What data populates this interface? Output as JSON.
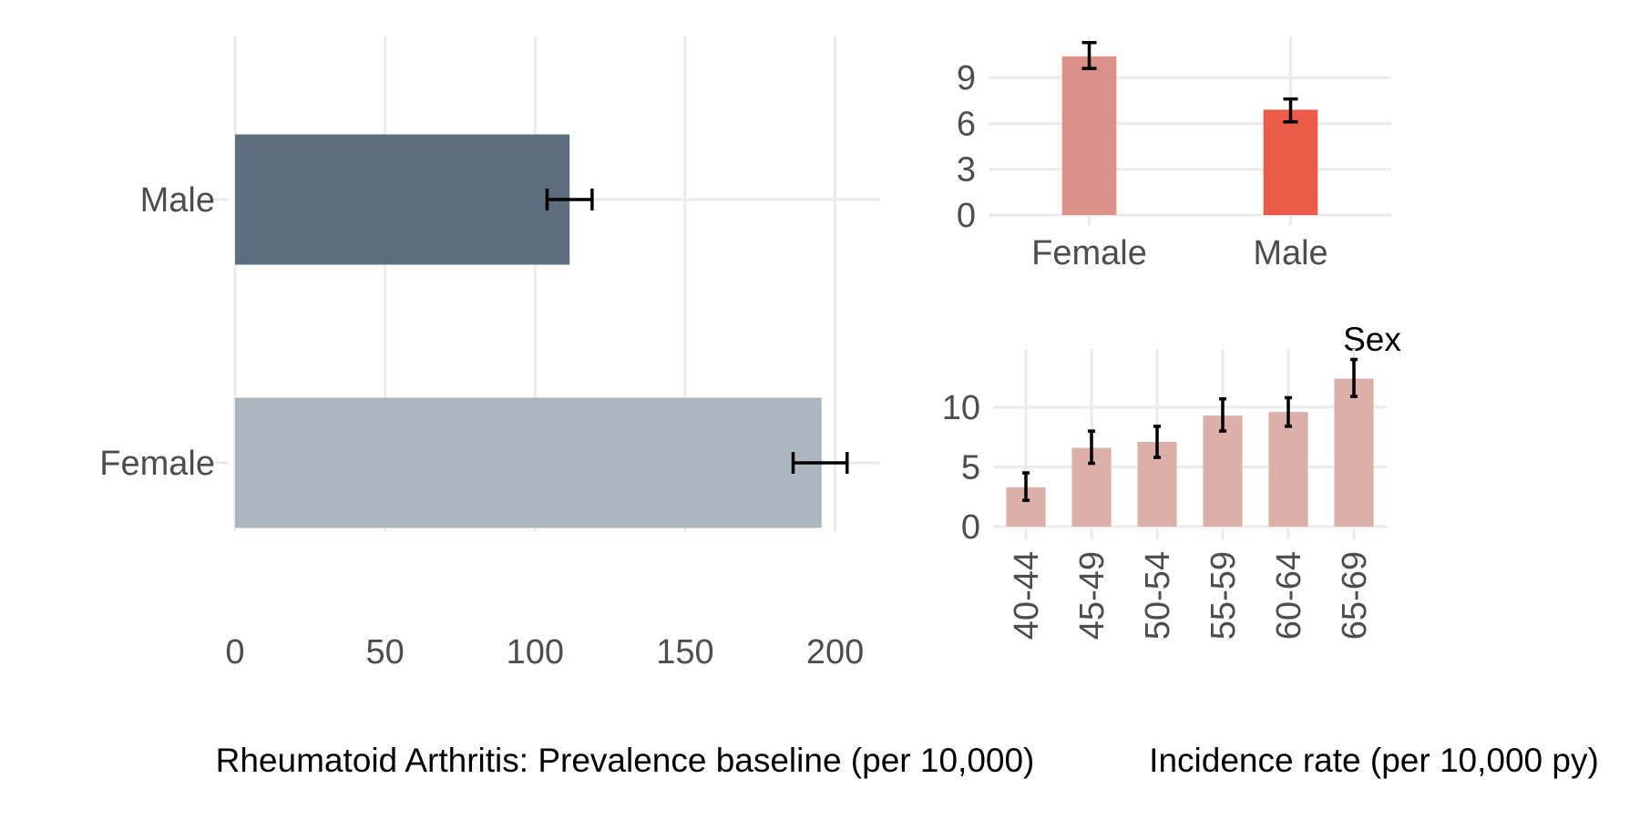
{
  "chart_data": [
    {
      "id": "prevalence",
      "type": "bar",
      "orientation": "horizontal",
      "title": "",
      "xlabel": "Rheumatoid Arthritis: Prevalence baseline (per 10,000)",
      "ylabel": "",
      "categories": [
        "Male",
        "Female"
      ],
      "values": [
        111.5,
        195.5
      ],
      "ci_low": [
        104,
        186
      ],
      "ci_high": [
        119,
        204
      ],
      "colors": [
        "#5d6d7e",
        "#adb5be"
      ],
      "xlim": [
        0,
        215
      ],
      "xticks": [
        0,
        50,
        100,
        150,
        200
      ],
      "grid": true
    },
    {
      "id": "incidence_sex",
      "type": "bar",
      "orientation": "vertical",
      "title": "",
      "xlabel": "Sex",
      "ylabel": "",
      "categories": [
        "Female",
        "Male"
      ],
      "values": [
        10.4,
        6.9
      ],
      "ci_low": [
        9.6,
        6.1
      ],
      "ci_high": [
        11.3,
        7.6
      ],
      "colors": [
        "#dc9188",
        "#ec5a4a"
      ],
      "ylim": [
        0,
        11.7
      ],
      "yticks": [
        0,
        3,
        6,
        9
      ],
      "grid": true
    },
    {
      "id": "incidence_age",
      "type": "bar",
      "orientation": "vertical",
      "title": "",
      "xlabel": "Incidence rate (per 10,000 py)",
      "ylabel": "",
      "categories": [
        "40-44",
        "45-49",
        "50-54",
        "55-59",
        "60-64",
        "65-69"
      ],
      "values": [
        3.3,
        6.6,
        7.1,
        9.3,
        9.6,
        12.4
      ],
      "ci_low": [
        2.2,
        5.3,
        5.8,
        8.0,
        8.4,
        10.9
      ],
      "ci_high": [
        4.5,
        8.0,
        8.4,
        10.7,
        10.8,
        14.0
      ],
      "color": "#dbb0a9",
      "ylim": [
        0,
        14.5
      ],
      "yticks": [
        0,
        5,
        10
      ],
      "grid": true
    }
  ]
}
